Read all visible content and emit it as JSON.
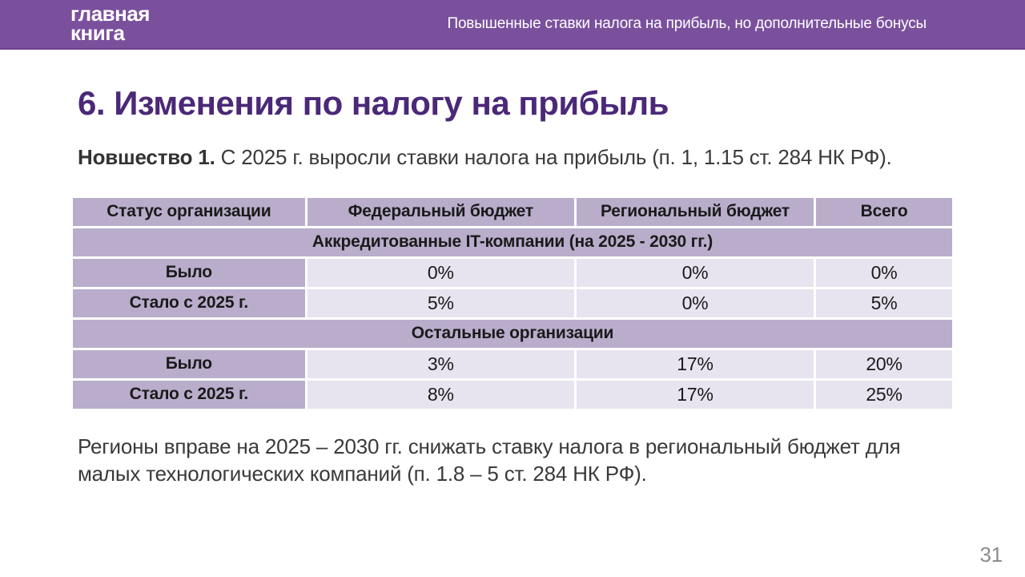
{
  "header": {
    "logo_line1": "главная",
    "logo_line2": "книга",
    "tagline": "Повышенные ставки налога на прибыль, но дополнительные бонусы"
  },
  "slide": {
    "title": "6. Изменения по налогу на прибыль",
    "intro_lead": "Новшество 1.",
    "intro_text": " С 2025 г. выросли ставки налога на прибыль (п. 1, 1.15 ст. 284 НК РФ).",
    "note": "Регионы вправе на 2025 – 2030 гг. снижать ставку налога в региональный бюджет для малых технологических компаний (п. 1.8 – 5 ст. 284 НК РФ).",
    "page_number": "31"
  },
  "table": {
    "columns": [
      "Статус организации",
      "Федеральный бюджет",
      "Региональный бюджет",
      "Всего"
    ],
    "sections": [
      {
        "title": "Аккредитованные IT-компании (на 2025 - 2030 гг.)",
        "rows": [
          {
            "label": "Было",
            "values": [
              "0%",
              "0%",
              "0%"
            ]
          },
          {
            "label": "Стало с 2025 г.",
            "values": [
              "5%",
              "0%",
              "5%"
            ]
          }
        ]
      },
      {
        "title": "Остальные организации",
        "rows": [
          {
            "label": "Было",
            "values": [
              "3%",
              "17%",
              "20%"
            ]
          },
          {
            "label": "Стало с 2025 г.",
            "values": [
              "8%",
              "17%",
              "25%"
            ]
          }
        ]
      }
    ]
  },
  "colors": {
    "brand_purple": "#7A509D",
    "title_purple": "#4B2878",
    "table_header_bg": "#B9ADCB",
    "table_cell_bg": "#E7E3EF",
    "body_text": "#3A3A3A",
    "page_number_gray": "#8C8C8C"
  }
}
